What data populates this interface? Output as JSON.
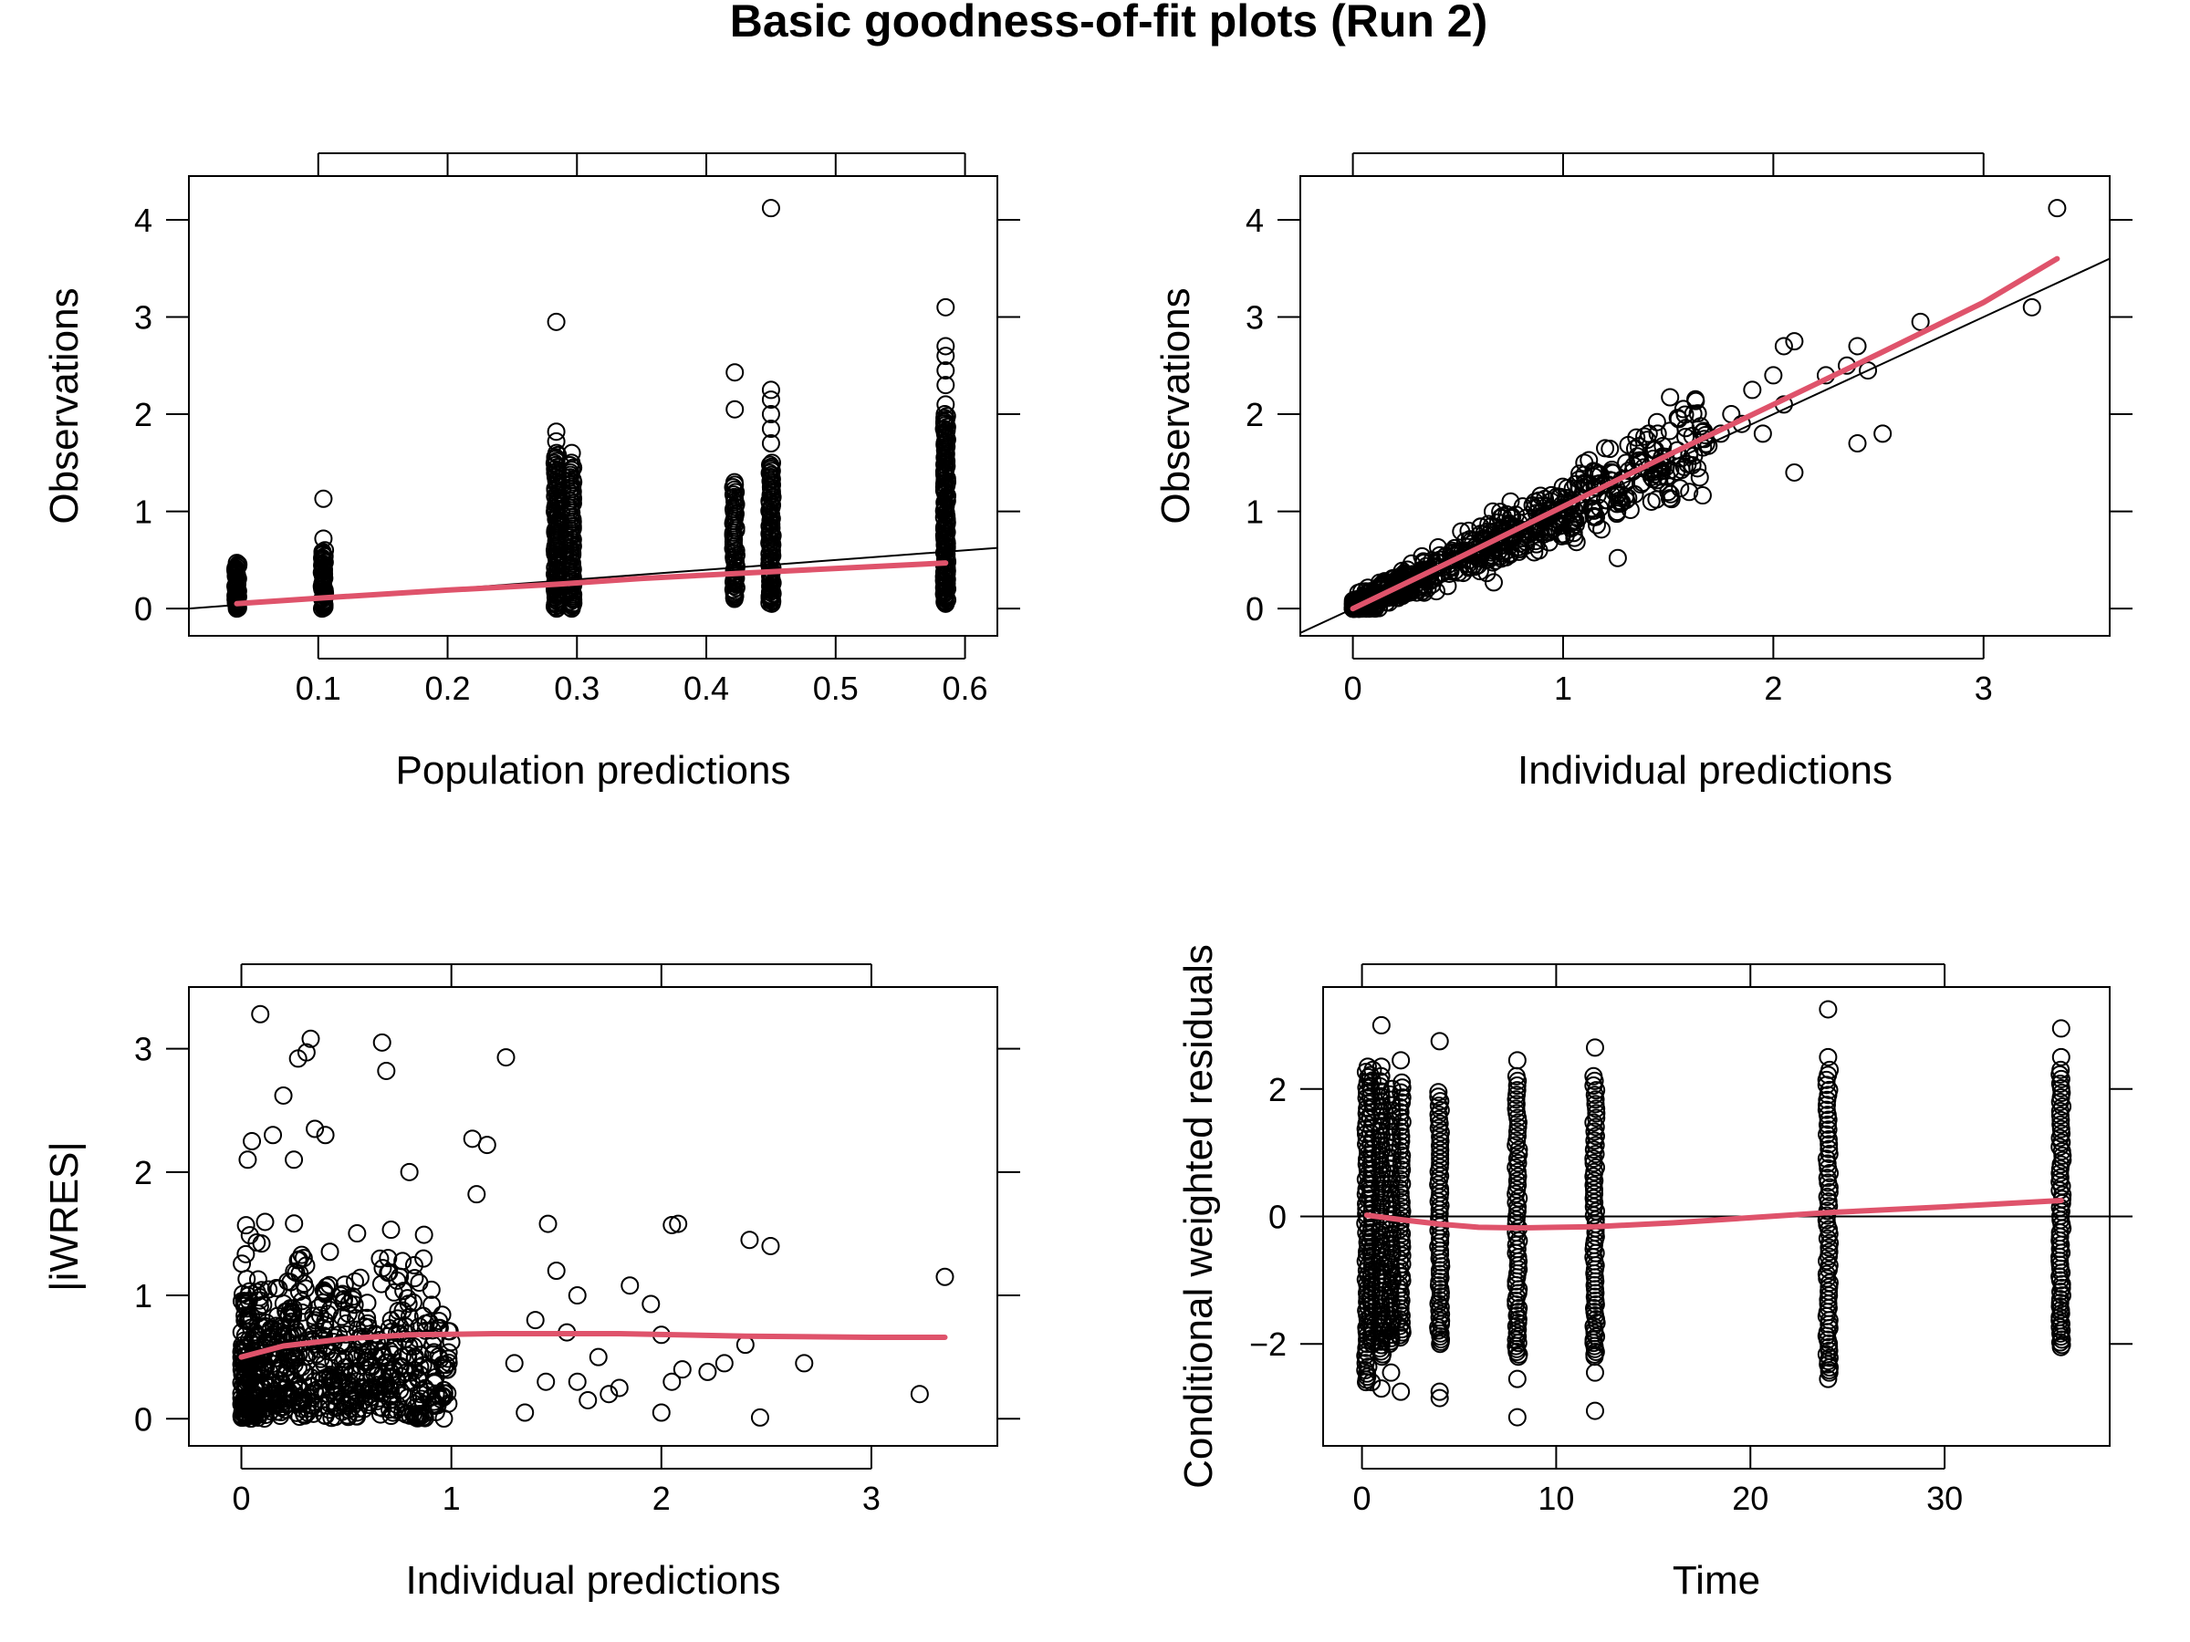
{
  "figure": {
    "title": "Basic goodness-of-fit plots (Run 2)"
  },
  "colors": {
    "points": "#000000",
    "smooth": "#df536b",
    "reference": "#000000",
    "background": "#ffffff"
  },
  "chart_data": [
    {
      "id": "obs-vs-pred",
      "type": "scatter",
      "title": "",
      "xlabel": "Population predictions",
      "ylabel": "Observations",
      "xlim": [
        0.0,
        0.625
      ],
      "ylim": [
        -0.28,
        4.45
      ],
      "xticks": [
        0.1,
        0.2,
        0.3,
        0.4,
        0.5,
        0.6
      ],
      "xtick_labels": [
        "0.1",
        "0.2",
        "0.3",
        "0.4",
        "0.5",
        "0.6"
      ],
      "yticks": [
        0,
        1,
        2,
        3,
        4
      ],
      "ytick_labels": [
        "0",
        "1",
        "2",
        "3",
        "4"
      ],
      "reference_line": {
        "kind": "identity"
      },
      "clusters": [
        {
          "x": 0.037,
          "min": 0.0,
          "max": 0.47,
          "n": 40,
          "outliers": []
        },
        {
          "x": 0.104,
          "min": 0.0,
          "max": 0.6,
          "n": 45,
          "outliers": [
            0.72,
            1.13
          ]
        },
        {
          "x": 0.284,
          "min": 0.0,
          "max": 1.6,
          "n": 90,
          "outliers": [
            1.72,
            1.82,
            2.95
          ]
        },
        {
          "x": 0.296,
          "min": 0.0,
          "max": 1.5,
          "n": 70,
          "outliers": [
            1.6
          ]
        },
        {
          "x": 0.422,
          "min": 0.1,
          "max": 1.3,
          "n": 55,
          "outliers": [
            2.05,
            2.43
          ]
        },
        {
          "x": 0.45,
          "min": 0.05,
          "max": 1.5,
          "n": 80,
          "outliers": [
            1.7,
            1.85,
            2.0,
            2.15,
            2.25,
            4.12
          ]
        },
        {
          "x": 0.585,
          "min": 0.05,
          "max": 2.0,
          "n": 120,
          "outliers": [
            2.1,
            2.3,
            2.45,
            2.6,
            2.7,
            3.1
          ]
        }
      ],
      "smooth": {
        "x": [
          0.037,
          0.104,
          0.2,
          0.284,
          0.35,
          0.45,
          0.585
        ],
        "y": [
          0.05,
          0.11,
          0.19,
          0.25,
          0.31,
          0.38,
          0.47
        ]
      }
    },
    {
      "id": "obs-vs-ipred",
      "type": "scatter",
      "title": "",
      "xlabel": "Individual predictions",
      "ylabel": "Observations",
      "xlim": [
        -0.25,
        3.6
      ],
      "ylim": [
        -0.28,
        4.45
      ],
      "xticks": [
        0,
        1,
        2,
        3
      ],
      "xtick_labels": [
        "0",
        "1",
        "2",
        "3"
      ],
      "yticks": [
        0,
        1,
        2,
        3,
        4
      ],
      "ytick_labels": [
        "0",
        "1",
        "2",
        "3",
        "4"
      ],
      "reference_line": {
        "kind": "identity"
      },
      "core": {
        "xmin": 0.0,
        "xmax": 1.7,
        "slope": 1.02,
        "spread": 0.17,
        "n": 700
      },
      "points": [
        [
          1.9,
          2.25
        ],
        [
          2.0,
          2.4
        ],
        [
          2.05,
          2.7
        ],
        [
          2.1,
          2.75
        ],
        [
          2.25,
          2.4
        ],
        [
          2.35,
          2.5
        ],
        [
          2.4,
          2.7
        ],
        [
          2.45,
          2.45
        ],
        [
          2.7,
          2.95
        ],
        [
          1.75,
          1.8
        ],
        [
          1.85,
          1.9
        ],
        [
          1.95,
          1.8
        ],
        [
          2.05,
          2.1
        ],
        [
          2.1,
          1.4
        ],
        [
          2.4,
          1.7
        ],
        [
          2.52,
          1.8
        ],
        [
          3.35,
          4.12
        ],
        [
          3.23,
          3.1
        ],
        [
          1.26,
          0.52
        ],
        [
          1.5,
          1.2
        ],
        [
          1.6,
          1.2
        ],
        [
          1.42,
          1.1
        ],
        [
          1.2,
          1.65
        ],
        [
          1.3,
          1.5
        ],
        [
          0.67,
          0.27
        ],
        [
          1.15,
          1.25
        ],
        [
          1.8,
          2.0
        ],
        [
          1.65,
          1.35
        ],
        [
          1.55,
          1.95
        ],
        [
          1.45,
          1.8
        ]
      ],
      "smooth": {
        "x": [
          0.0,
          0.5,
          1.0,
          1.5,
          2.0,
          2.5,
          3.0,
          3.35
        ],
        "y": [
          0.0,
          0.52,
          1.05,
          1.58,
          2.1,
          2.62,
          3.15,
          3.6
        ]
      }
    },
    {
      "id": "abs-iwres-vs-ipred",
      "type": "scatter",
      "title": "",
      "xlabel": "Individual predictions",
      "ylabel": "|iWRES|",
      "xlim": [
        -0.25,
        3.6
      ],
      "ylim": [
        -0.22,
        3.5
      ],
      "xticks": [
        0,
        1,
        2,
        3
      ],
      "xtick_labels": [
        "0",
        "1",
        "2",
        "3"
      ],
      "yticks": [
        0,
        1,
        2,
        3
      ],
      "ytick_labels": [
        "0",
        "1",
        "2",
        "3"
      ],
      "core": {
        "xmin": 0.0,
        "xmax": 1.0,
        "ymax": 1.6,
        "n": 700
      },
      "points": [
        [
          0.09,
          3.28
        ],
        [
          0.33,
          3.08
        ],
        [
          0.31,
          2.97
        ],
        [
          0.27,
          2.92
        ],
        [
          0.67,
          3.05
        ],
        [
          0.69,
          2.82
        ],
        [
          1.26,
          2.93
        ],
        [
          0.2,
          2.62
        ],
        [
          0.03,
          2.1
        ],
        [
          0.05,
          2.25
        ],
        [
          0.15,
          2.3
        ],
        [
          0.35,
          2.35
        ],
        [
          0.4,
          2.3
        ],
        [
          0.25,
          2.1
        ],
        [
          1.1,
          2.27
        ],
        [
          1.17,
          2.22
        ],
        [
          1.12,
          1.82
        ],
        [
          0.8,
          2.0
        ],
        [
          1.46,
          1.58
        ],
        [
          2.05,
          1.57
        ],
        [
          2.08,
          1.58
        ],
        [
          2.42,
          1.45
        ],
        [
          2.52,
          1.4
        ],
        [
          1.85,
          1.08
        ],
        [
          1.95,
          0.93
        ],
        [
          2.0,
          0.68
        ],
        [
          2.1,
          0.4
        ],
        [
          2.05,
          0.3
        ],
        [
          2.22,
          0.38
        ],
        [
          2.3,
          0.45
        ],
        [
          2.4,
          0.6
        ],
        [
          2.68,
          0.45
        ],
        [
          2.47,
          0.01
        ],
        [
          2.0,
          0.05
        ],
        [
          3.35,
          1.15
        ],
        [
          3.23,
          0.2
        ],
        [
          1.5,
          1.2
        ],
        [
          1.6,
          1.0
        ],
        [
          1.55,
          0.7
        ],
        [
          1.7,
          0.5
        ],
        [
          1.75,
          0.2
        ],
        [
          1.45,
          0.3
        ],
        [
          1.35,
          0.05
        ],
        [
          1.4,
          0.8
        ],
        [
          1.3,
          0.45
        ],
        [
          1.6,
          0.3
        ],
        [
          1.65,
          0.15
        ],
        [
          1.8,
          0.25
        ]
      ],
      "smooth": {
        "x": [
          0.0,
          0.2,
          0.5,
          0.8,
          1.2,
          1.8,
          2.4,
          3.0,
          3.35
        ],
        "y": [
          0.5,
          0.59,
          0.65,
          0.68,
          0.69,
          0.69,
          0.67,
          0.66,
          0.66
        ]
      }
    },
    {
      "id": "cwres-vs-time",
      "type": "scatter",
      "title": "",
      "xlabel": "Time",
      "ylabel": "Conditional weighted residuals",
      "xlim": [
        -2.0,
        38.5
      ],
      "ylim": [
        -3.6,
        3.6
      ],
      "xticks": [
        0,
        10,
        20,
        30
      ],
      "xtick_labels": [
        "0",
        "10",
        "20",
        "30"
      ],
      "yticks": [
        -2,
        0,
        2
      ],
      "ytick_labels": [
        "−2",
        "0",
        "2"
      ],
      "reference_line": {
        "kind": "horizontal",
        "y": 0
      },
      "clusters": [
        {
          "x": 0.25,
          "min": -2.6,
          "max": 2.35,
          "n": 70,
          "outliers": []
        },
        {
          "x": 0.5,
          "min": -2.0,
          "max": 2.3,
          "n": 60,
          "outliers": [
            -2.6
          ]
        },
        {
          "x": 1.0,
          "min": -2.2,
          "max": 2.2,
          "n": 65,
          "outliers": [
            2.35,
            3.0,
            -2.7
          ]
        },
        {
          "x": 1.5,
          "min": -2.0,
          "max": 2.0,
          "n": 55,
          "outliers": [
            -2.45
          ]
        },
        {
          "x": 2.0,
          "min": -1.9,
          "max": 2.1,
          "n": 60,
          "outliers": [
            2.45,
            -2.75
          ]
        },
        {
          "x": 4.0,
          "min": -2.0,
          "max": 1.95,
          "n": 65,
          "outliers": [
            2.75,
            -2.75,
            -2.85
          ]
        },
        {
          "x": 8.0,
          "min": -2.2,
          "max": 2.2,
          "n": 70,
          "outliers": [
            2.45,
            -2.55,
            -3.15
          ]
        },
        {
          "x": 12.0,
          "min": -2.2,
          "max": 2.2,
          "n": 70,
          "outliers": [
            2.65,
            -2.45,
            -3.05
          ]
        },
        {
          "x": 24.0,
          "min": -2.45,
          "max": 2.3,
          "n": 70,
          "outliers": [
            2.5,
            3.25,
            -2.55
          ]
        },
        {
          "x": 36.0,
          "min": -2.05,
          "max": 2.3,
          "n": 70,
          "outliers": [
            2.5,
            2.95
          ]
        }
      ],
      "smooth": {
        "x": [
          0.25,
          2.0,
          4.0,
          6.0,
          8.0,
          10.0,
          12.0,
          16.0,
          20.0,
          24.0,
          30.0,
          36.0
        ],
        "y": [
          0.02,
          -0.05,
          -0.12,
          -0.17,
          -0.18,
          -0.17,
          -0.16,
          -0.1,
          -0.02,
          0.06,
          0.15,
          0.25
        ]
      }
    }
  ]
}
